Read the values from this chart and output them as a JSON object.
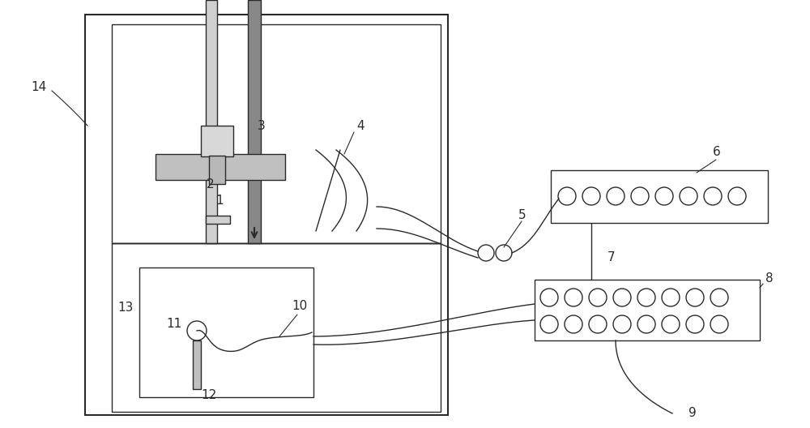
{
  "bg_color": "#ffffff",
  "line_color": "#2a2a2a",
  "fig_width": 10.0,
  "fig_height": 5.28,
  "dpi": 100
}
